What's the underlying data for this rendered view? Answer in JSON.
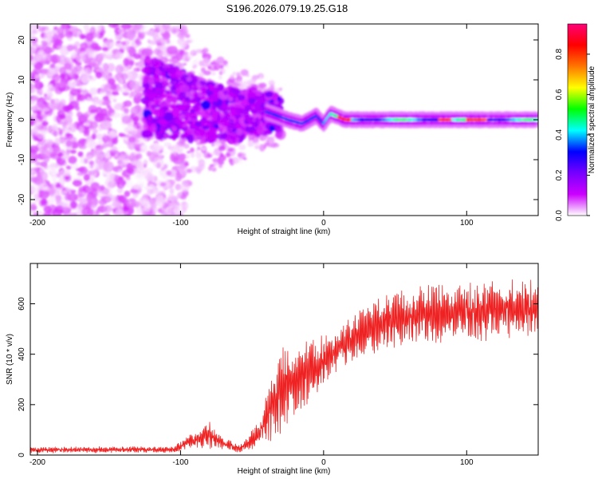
{
  "title": "S196.2026.079.19.25.G18",
  "chart_data": [
    {
      "type": "heatmap",
      "xlabel": "Height of straight line (km)",
      "ylabel": "Frequency (Hz)",
      "xlim": [
        -205,
        150
      ],
      "ylim": [
        -24,
        24
      ],
      "xticks": [
        -200,
        -100,
        0,
        100
      ],
      "yticks": [
        -20,
        -10,
        0,
        10,
        20
      ],
      "colorbar": {
        "label": "Normalized spectral amplitude",
        "range": [
          0,
          0.95
        ],
        "ticks": [
          "0.0",
          "0.2",
          "0.4",
          "0.6",
          "0.8"
        ],
        "tick_values": [
          0.0,
          0.2,
          0.4,
          0.6,
          0.8
        ],
        "colors": [
          "#ffffff",
          "#cc00ff",
          "#7700ff",
          "#0000ff",
          "#00ffff",
          "#00ff00",
          "#ffff00",
          "#ff7700",
          "#ff0000",
          "#ff0077"
        ]
      },
      "ridge": [
        {
          "x": -125,
          "f": 6
        },
        {
          "x": -100,
          "f": 4
        },
        {
          "x": -80,
          "f": 2
        },
        {
          "x": -60,
          "f": 1
        },
        {
          "x": -40,
          "f": 2
        },
        {
          "x": -25,
          "f": 0
        },
        {
          "x": -15,
          "f": -1
        },
        {
          "x": -5,
          "f": 1
        },
        {
          "x": 0,
          "f": -1
        },
        {
          "x": 5,
          "f": 1.5
        },
        {
          "x": 15,
          "f": 0
        },
        {
          "x": 150,
          "f": 0
        }
      ]
    },
    {
      "type": "line",
      "xlabel": "Height of straight line (km)",
      "ylabel": "SNR (10 * v/v)",
      "xlim": [
        -205,
        150
      ],
      "ylim": [
        0,
        760
      ],
      "xticks": [
        -200,
        -100,
        0,
        100
      ],
      "yticks": [
        0,
        200,
        400,
        600
      ],
      "color": "#ee2222",
      "envelope": [
        {
          "x": -205,
          "mean": 20,
          "amp": 12
        },
        {
          "x": -105,
          "mean": 22,
          "amp": 12
        },
        {
          "x": -95,
          "mean": 50,
          "amp": 25
        },
        {
          "x": -80,
          "mean": 80,
          "amp": 50
        },
        {
          "x": -70,
          "mean": 45,
          "amp": 25
        },
        {
          "x": -58,
          "mean": 25,
          "amp": 15
        },
        {
          "x": -45,
          "mean": 80,
          "amp": 50
        },
        {
          "x": -38,
          "mean": 180,
          "amp": 120
        },
        {
          "x": -30,
          "mean": 250,
          "amp": 160
        },
        {
          "x": -20,
          "mean": 300,
          "amp": 150
        },
        {
          "x": -5,
          "mean": 350,
          "amp": 110
        },
        {
          "x": 10,
          "mean": 420,
          "amp": 80
        },
        {
          "x": 25,
          "mean": 480,
          "amp": 90
        },
        {
          "x": 40,
          "mean": 520,
          "amp": 100
        },
        {
          "x": 60,
          "mean": 550,
          "amp": 110
        },
        {
          "x": 100,
          "mean": 570,
          "amp": 110
        },
        {
          "x": 150,
          "mean": 580,
          "amp": 110
        }
      ]
    }
  ]
}
